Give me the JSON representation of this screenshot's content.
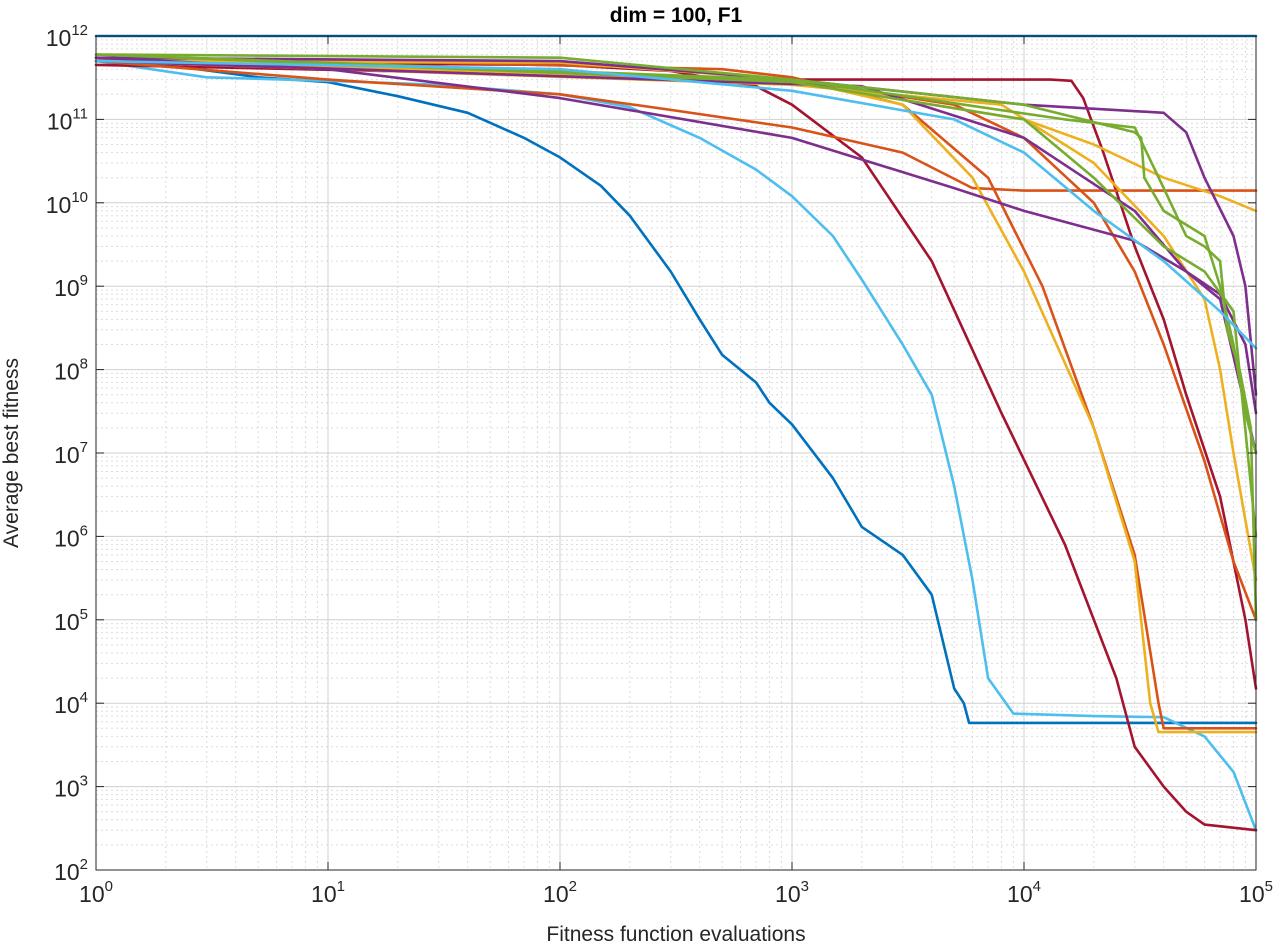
{
  "chart_data": {
    "type": "line",
    "title": "dim = 100,  F1",
    "xlabel": "Fitness function evaluations",
    "ylabel": "Average best fitness",
    "xscale": "log",
    "yscale": "log",
    "xlim": [
      1,
      100000
    ],
    "ylim": [
      100,
      1000000000000
    ],
    "grid": true,
    "x_ticks": [
      {
        "base": "10",
        "exp": "0",
        "value": 1
      },
      {
        "base": "10",
        "exp": "1",
        "value": 10
      },
      {
        "base": "10",
        "exp": "2",
        "value": 100
      },
      {
        "base": "10",
        "exp": "3",
        "value": 1000
      },
      {
        "base": "10",
        "exp": "4",
        "value": 10000
      },
      {
        "base": "10",
        "exp": "5",
        "value": 100000
      }
    ],
    "y_ticks": [
      {
        "base": "10",
        "exp": "2",
        "value": 100
      },
      {
        "base": "10",
        "exp": "3",
        "value": 1000
      },
      {
        "base": "10",
        "exp": "4",
        "value": 10000
      },
      {
        "base": "10",
        "exp": "5",
        "value": 100000
      },
      {
        "base": "10",
        "exp": "6",
        "value": 1000000
      },
      {
        "base": "10",
        "exp": "7",
        "value": 10000000
      },
      {
        "base": "10",
        "exp": "8",
        "value": 100000000
      },
      {
        "base": "10",
        "exp": "9",
        "value": 1000000000
      },
      {
        "base": "10",
        "exp": "10",
        "value": 10000000000
      },
      {
        "base": "10",
        "exp": "11",
        "value": 100000000000
      },
      {
        "base": "10",
        "exp": "12",
        "value": 1000000000000
      }
    ],
    "series": [
      {
        "name": "series-1",
        "color": "#0072BD",
        "points": [
          [
            1,
            1000000000000.0
          ],
          [
            100000,
            1000000000000.0
          ]
        ]
      },
      {
        "name": "series-2",
        "color": "#0072BD",
        "points": [
          [
            1,
            550000000000.0
          ],
          [
            2,
            450000000000.0
          ],
          [
            5,
            320000000000.0
          ],
          [
            10,
            280000000000.0
          ],
          [
            20,
            190000000000.0
          ],
          [
            40,
            120000000000.0
          ],
          [
            70,
            60000000000.0
          ],
          [
            100,
            35000000000.0
          ],
          [
            150,
            16000000000.0
          ],
          [
            200,
            7000000000.0
          ],
          [
            300,
            1500000000.0
          ],
          [
            400,
            400000000.0
          ],
          [
            500,
            150000000.0
          ],
          [
            700,
            70000000.0
          ],
          [
            800,
            40000000.0
          ],
          [
            1000,
            22000000.0
          ],
          [
            1500,
            5000000.0
          ],
          [
            2000,
            1300000.0
          ],
          [
            3000,
            600000.0
          ],
          [
            4000,
            200000.0
          ],
          [
            5000,
            15000.0
          ],
          [
            5500,
            10000.0
          ],
          [
            5800,
            5800.0
          ],
          [
            100000,
            5800.0
          ]
        ]
      },
      {
        "name": "series-3",
        "color": "#4DBEEE",
        "points": [
          [
            1,
            500000000000.0
          ],
          [
            3,
            320000000000.0
          ],
          [
            10,
            290000000000.0
          ],
          [
            30,
            260000000000.0
          ],
          [
            100,
            200000000000.0
          ],
          [
            200,
            140000000000.0
          ],
          [
            400,
            60000000000.0
          ],
          [
            700,
            25000000000.0
          ],
          [
            1000,
            12000000000.0
          ],
          [
            1500,
            4000000000.0
          ],
          [
            2000,
            1200000000.0
          ],
          [
            3000,
            200000000.0
          ],
          [
            4000,
            50000000.0
          ],
          [
            5000,
            4000000.0
          ],
          [
            6000,
            300000.0
          ],
          [
            7000,
            20000.0
          ],
          [
            9000,
            7500.0
          ],
          [
            20000,
            7000.0
          ],
          [
            40000,
            6800.0
          ],
          [
            60000,
            4000.0
          ],
          [
            80000,
            1500.0
          ],
          [
            100000,
            300.0
          ]
        ]
      },
      {
        "name": "series-4",
        "color": "#A2142F",
        "points": [
          [
            1,
            500000000000.0
          ],
          [
            10,
            470000000000.0
          ],
          [
            100,
            450000000000.0
          ],
          [
            300,
            380000000000.0
          ],
          [
            700,
            250000000000.0
          ],
          [
            1000,
            150000000000.0
          ],
          [
            2000,
            35000000000.0
          ],
          [
            4000,
            2000000000.0
          ],
          [
            8000,
            30000000.0
          ],
          [
            15000,
            800000.0
          ],
          [
            25000,
            20000.0
          ],
          [
            30000,
            3000.0
          ],
          [
            40000,
            1000.0
          ],
          [
            50000,
            500.0
          ],
          [
            60000,
            350.0
          ],
          [
            100000,
            300.0
          ]
        ]
      },
      {
        "name": "series-5",
        "color": "#A2142F",
        "points": [
          [
            1,
            450000000000.0
          ],
          [
            1000,
            300000000000.0
          ],
          [
            13000,
            300000000000.0
          ],
          [
            16000,
            290000000000.0
          ],
          [
            18000,
            180000000000.0
          ],
          [
            22000,
            40000000000.0
          ],
          [
            30000,
            3000000000.0
          ],
          [
            40000,
            400000000.0
          ],
          [
            50000,
            50000000.0
          ],
          [
            70000,
            3000000.0
          ],
          [
            90000,
            100000.0
          ],
          [
            100000,
            15000.0
          ]
        ]
      },
      {
        "name": "series-6",
        "color": "#D95319",
        "points": [
          [
            1,
            500000000000.0
          ],
          [
            10,
            300000000000.0
          ],
          [
            100,
            200000000000.0
          ],
          [
            300,
            130000000000.0
          ],
          [
            1000,
            80000000000.0
          ],
          [
            3000,
            40000000000.0
          ],
          [
            6000,
            15000000000.0
          ],
          [
            10000,
            14000000000.0
          ],
          [
            100000,
            14000000000.0
          ]
        ]
      },
      {
        "name": "series-7",
        "color": "#D95319",
        "points": [
          [
            1,
            500000000000.0
          ],
          [
            30,
            480000000000.0
          ],
          [
            500,
            400000000000.0
          ],
          [
            1000,
            320000000000.0
          ],
          [
            3000,
            150000000000.0
          ],
          [
            7000,
            20000000000.0
          ],
          [
            12000,
            1000000000.0
          ],
          [
            20000,
            20000000.0
          ],
          [
            30000,
            600000.0
          ],
          [
            38000,
            10000.0
          ],
          [
            40000,
            5000.0
          ],
          [
            100000,
            5000.0
          ]
        ]
      },
      {
        "name": "series-8",
        "color": "#D95319",
        "points": [
          [
            1,
            500000000000.0
          ],
          [
            1000,
            300000000000.0
          ],
          [
            5000,
            150000000000.0
          ],
          [
            10000,
            60000000000.0
          ],
          [
            20000,
            10000000000.0
          ],
          [
            30000,
            1500000000.0
          ],
          [
            40000,
            200000000.0
          ],
          [
            60000,
            8000000.0
          ],
          [
            80000,
            500000.0
          ],
          [
            100000,
            100000.0
          ]
        ]
      },
      {
        "name": "series-9",
        "color": "#EDB120",
        "points": [
          [
            1,
            500000000000.0
          ],
          [
            100,
            480000000000.0
          ],
          [
            1000,
            300000000000.0
          ],
          [
            3000,
            150000000000.0
          ],
          [
            6000,
            20000000000.0
          ],
          [
            10000,
            1500000000.0
          ],
          [
            20000,
            20000000.0
          ],
          [
            30000,
            500000.0
          ],
          [
            35000,
            10000.0
          ],
          [
            38000,
            4500.0
          ],
          [
            100000,
            4500.0
          ]
        ]
      },
      {
        "name": "series-10",
        "color": "#EDB120",
        "points": [
          [
            1,
            550000000000.0
          ],
          [
            1000,
            280000000000.0
          ],
          [
            10000,
            100000000000.0
          ],
          [
            20000,
            50000000000.0
          ],
          [
            40000,
            20000000000.0
          ],
          [
            70000,
            12000000000.0
          ],
          [
            100000,
            8000000000.0
          ]
        ]
      },
      {
        "name": "series-11",
        "color": "#EDB120",
        "points": [
          [
            1,
            500000000000.0
          ],
          [
            1000,
            260000000000.0
          ],
          [
            8000,
            150000000000.0
          ],
          [
            20000,
            30000000000.0
          ],
          [
            40000,
            4000000000.0
          ],
          [
            60000,
            700000000.0
          ],
          [
            70000,
            100000000.0
          ],
          [
            80000,
            10000000.0
          ],
          [
            100000,
            300000.0
          ]
        ]
      },
      {
        "name": "series-12",
        "color": "#7E2F8E",
        "points": [
          [
            1,
            550000000000.0
          ],
          [
            10,
            400000000000.0
          ],
          [
            100,
            180000000000.0
          ],
          [
            1000,
            60000000000.0
          ],
          [
            5000,
            15000000000.0
          ],
          [
            10000,
            8000000000.0
          ],
          [
            30000,
            3500000000.0
          ],
          [
            50000,
            1500000000.0
          ],
          [
            70000,
            700000000.0
          ],
          [
            100000,
            10000000.0
          ]
        ]
      },
      {
        "name": "series-13",
        "color": "#7E2F8E",
        "points": [
          [
            1,
            550000000000.0
          ],
          [
            100,
            500000000000.0
          ],
          [
            1000,
            300000000000.0
          ],
          [
            10000,
            150000000000.0
          ],
          [
            40000,
            120000000000.0
          ],
          [
            50000,
            70000000000.0
          ],
          [
            60000,
            20000000000.0
          ],
          [
            80000,
            4000000000.0
          ],
          [
            90000,
            1000000000.0
          ],
          [
            100000,
            50000000.0
          ]
        ]
      },
      {
        "name": "series-14",
        "color": "#7E2F8E",
        "points": [
          [
            1,
            500000000000.0
          ],
          [
            2000,
            250000000000.0
          ],
          [
            10000,
            60000000000.0
          ],
          [
            30000,
            8000000000.0
          ],
          [
            50000,
            1500000000.0
          ],
          [
            70000,
            800000000.0
          ],
          [
            90000,
            200000000.0
          ],
          [
            100000,
            30000000.0
          ]
        ]
      },
      {
        "name": "series-15",
        "color": "#77AC30",
        "points": [
          [
            1,
            600000000000.0
          ],
          [
            100,
            550000000000.0
          ],
          [
            1000,
            300000000000.0
          ],
          [
            10000,
            150000000000.0
          ],
          [
            30000,
            70000000000.0
          ],
          [
            32000,
            60000000000.0
          ],
          [
            33000,
            20000000000.0
          ],
          [
            40000,
            8000000000.0
          ],
          [
            60000,
            4000000000.0
          ],
          [
            70000,
            1000000000.0
          ],
          [
            80000,
            200000000.0
          ],
          [
            90000,
            30000000.0
          ],
          [
            100000,
            10000000.0
          ]
        ]
      },
      {
        "name": "series-16",
        "color": "#77AC30",
        "points": [
          [
            1,
            600000000000.0
          ],
          [
            1000,
            300000000000.0
          ],
          [
            15000,
            100000000000.0
          ],
          [
            30000,
            80000000000.0
          ],
          [
            40000,
            15000000000.0
          ],
          [
            50000,
            4000000000.0
          ],
          [
            60000,
            3000000000.0
          ],
          [
            70000,
            2000000000.0
          ],
          [
            75000,
            300000000.0
          ],
          [
            85000,
            100000000.0
          ],
          [
            95000,
            20000000.0
          ],
          [
            100000,
            100000.0
          ]
        ]
      },
      {
        "name": "series-17",
        "color": "#77AC30",
        "points": [
          [
            1,
            600000000000.0
          ],
          [
            1000,
            280000000000.0
          ],
          [
            10000,
            100000000000.0
          ],
          [
            20000,
            20000000000.0
          ],
          [
            40000,
            3000000000.0
          ],
          [
            60000,
            1500000000.0
          ],
          [
            80000,
            500000000.0
          ],
          [
            100000,
            1000000.0
          ]
        ]
      },
      {
        "name": "series-18",
        "color": "#4DBEEE",
        "points": [
          [
            1,
            500000000000.0
          ],
          [
            100,
            400000000000.0
          ],
          [
            1000,
            220000000000.0
          ],
          [
            5000,
            100000000000.0
          ],
          [
            10000,
            40000000000.0
          ],
          [
            20000,
            8000000000.0
          ],
          [
            40000,
            2000000000.0
          ],
          [
            70000,
            500000000.0
          ],
          [
            100000,
            180000000.0
          ]
        ]
      }
    ]
  }
}
